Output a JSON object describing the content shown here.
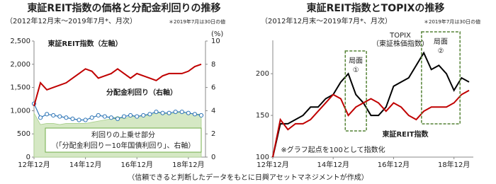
{
  "chart_data": [
    {
      "type": "line",
      "title": "東証REIT指数の価格と分配金利回りの推移",
      "subtitle": "（2012年12月末～2019年7月*、月次）",
      "note": "＊2019年7月は30日の値",
      "categories": [
        "12年12月",
        null,
        null,
        null,
        null,
        null,
        null,
        null,
        "14年12月",
        null,
        null,
        null,
        null,
        null,
        null,
        null,
        "16年12月",
        null,
        null,
        null,
        null,
        null,
        null,
        null,
        "18年12月",
        null,
        null
      ],
      "ylim": [
        0,
        2500
      ],
      "yticks": [
        0,
        500,
        {
          "value": 1000,
          "label": "1,000"
        },
        {
          "value": 1500,
          "label": "1,500"
        },
        {
          "value": 2000,
          "label": "2,000"
        },
        {
          "value": 2500,
          "label": "2,500"
        }
      ],
      "y2lim": [
        0,
        10
      ],
      "y2ticks": [
        0,
        2,
        4,
        6,
        8,
        10
      ],
      "y2_unit": "(%)",
      "series": [
        {
          "name": "利回りの上乗せ部分",
          "color": "#d5e8c4",
          "kind": "area",
          "axis": "y2",
          "values": [
            3.8,
            2.8,
            2.9,
            2.9,
            2.8,
            2.9,
            2.9,
            2.9,
            2.9,
            3.0,
            3.1,
            3.2,
            3.3,
            3.5,
            3.3,
            3.5,
            3.5,
            3.6,
            3.6,
            3.8,
            3.8,
            3.7,
            3.8,
            3.9,
            3.8,
            3.7,
            3.7
          ]
        },
        {
          "name": "分配金利回り（右軸）",
          "color": "#2e75b6",
          "kind": "markers",
          "axis": "y2",
          "values": [
            4.6,
            3.4,
            3.7,
            3.6,
            3.5,
            3.4,
            3.3,
            3.2,
            3.2,
            3.4,
            3.6,
            3.5,
            3.4,
            3.3,
            3.5,
            3.6,
            3.5,
            3.6,
            3.7,
            3.9,
            3.8,
            3.8,
            3.9,
            3.9,
            3.8,
            3.7,
            3.6
          ]
        },
        {
          "name": "東証REIT指数（左軸）",
          "color": "#c00000",
          "kind": "line",
          "values": [
            1100,
            1600,
            1450,
            1500,
            1550,
            1600,
            1700,
            1800,
            1900,
            1850,
            1700,
            1750,
            1800,
            1900,
            1800,
            1700,
            1800,
            1750,
            1700,
            1650,
            1750,
            1800,
            1800,
            1800,
            1850,
            1950,
            2000
          ]
        }
      ],
      "annotation": "（「分配金利回りー10年国債利回り」、右軸）"
    },
    {
      "type": "line",
      "title": "東証REIT指数とTOPIXの推移",
      "subtitle": "（2012年12月末～2019年7月*、月次）",
      "note": "＊2019年7月は30日の値",
      "categories": [
        "12年12月",
        null,
        null,
        null,
        null,
        null,
        null,
        null,
        "14年12月",
        null,
        null,
        null,
        null,
        null,
        null,
        null,
        "16年12月",
        null,
        null,
        null,
        null,
        null,
        null,
        null,
        "18年12月",
        null,
        null
      ],
      "ylim": [
        100,
        240
      ],
      "yticks": [
        100,
        150,
        200
      ],
      "series": [
        {
          "name": "TOPIX（東証株価指数）",
          "color": "#000000",
          "kind": "line",
          "values": [
            100,
            140,
            140,
            145,
            150,
            160,
            160,
            170,
            175,
            190,
            200,
            175,
            165,
            150,
            150,
            160,
            185,
            190,
            195,
            210,
            225,
            205,
            210,
            200,
            180,
            195,
            190
          ]
        },
        {
          "name": "東証REIT指数",
          "color": "#c00000",
          "kind": "line",
          "values": [
            100,
            145,
            133,
            140,
            140,
            145,
            155,
            165,
            175,
            170,
            150,
            160,
            165,
            170,
            165,
            155,
            165,
            160,
            150,
            145,
            155,
            160,
            160,
            160,
            165,
            175,
            180
          ]
        }
      ],
      "annotation": "※グラフ起点を100として指数化",
      "phases": [
        "局面①",
        "局面②"
      ]
    }
  ],
  "source": "（信頼できると判断したデータをもとに日興アセットマネジメントが作成）"
}
